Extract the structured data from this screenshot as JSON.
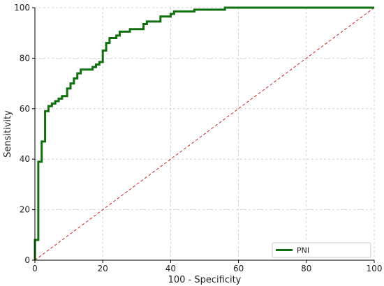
{
  "chart_data": {
    "type": "line",
    "title": "",
    "xlabel": "100 - Specificity",
    "ylabel": "Sensitivity",
    "xlim": [
      0,
      100
    ],
    "ylim": [
      0,
      100
    ],
    "xticks": [
      0,
      20,
      40,
      60,
      80,
      100
    ],
    "yticks": [
      0,
      20,
      40,
      60,
      80,
      100
    ],
    "grid": true,
    "legend_position": "bottom-right",
    "series": [
      {
        "name": "PNI",
        "color": "#107010",
        "style": "step",
        "points": [
          [
            0,
            0
          ],
          [
            0,
            8
          ],
          [
            1,
            8
          ],
          [
            1,
            39
          ],
          [
            2,
            39
          ],
          [
            2,
            47
          ],
          [
            3,
            47
          ],
          [
            3,
            59
          ],
          [
            4,
            59
          ],
          [
            4,
            61
          ],
          [
            5,
            61
          ],
          [
            5,
            62
          ],
          [
            6,
            62
          ],
          [
            6,
            63
          ],
          [
            7,
            63
          ],
          [
            7,
            64
          ],
          [
            8,
            64
          ],
          [
            8,
            65
          ],
          [
            9.5,
            65
          ],
          [
            9.5,
            68
          ],
          [
            10.5,
            68
          ],
          [
            10.5,
            70
          ],
          [
            11.5,
            70
          ],
          [
            11.5,
            72
          ],
          [
            12.5,
            72
          ],
          [
            12.5,
            74
          ],
          [
            13.5,
            74
          ],
          [
            13.5,
            75.5
          ],
          [
            17,
            75.5
          ],
          [
            17,
            76.5
          ],
          [
            18,
            76.5
          ],
          [
            18,
            77.5
          ],
          [
            19,
            77.5
          ],
          [
            19,
            78.5
          ],
          [
            20,
            78.5
          ],
          [
            20,
            83
          ],
          [
            21,
            83
          ],
          [
            21,
            86
          ],
          [
            22,
            86
          ],
          [
            22,
            88
          ],
          [
            24,
            88
          ],
          [
            24,
            89
          ],
          [
            25,
            89
          ],
          [
            25,
            90.5
          ],
          [
            28,
            90.5
          ],
          [
            28,
            91.5
          ],
          [
            32,
            91.5
          ],
          [
            32,
            93.5
          ],
          [
            33,
            93.5
          ],
          [
            33,
            94.5
          ],
          [
            37,
            94.5
          ],
          [
            37,
            96.5
          ],
          [
            40,
            96.5
          ],
          [
            40,
            97.5
          ],
          [
            41,
            97.5
          ],
          [
            41,
            98.5
          ],
          [
            47,
            98.5
          ],
          [
            47,
            99.2
          ],
          [
            56,
            99.2
          ],
          [
            56,
            100
          ],
          [
            100,
            100
          ]
        ]
      }
    ],
    "reference_line": {
      "color": "#cc2222",
      "style": "dashed",
      "points": [
        [
          0,
          0
        ],
        [
          100,
          100
        ]
      ]
    }
  }
}
